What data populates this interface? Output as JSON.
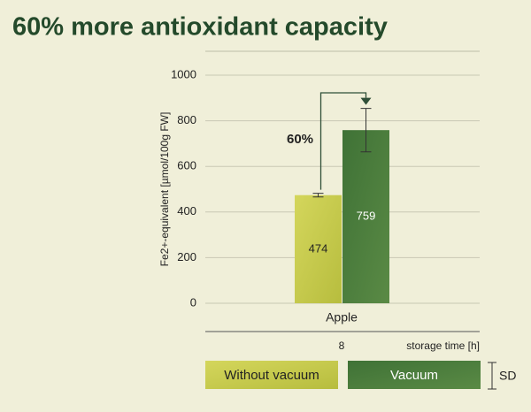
{
  "chart_data": {
    "type": "bar",
    "title": "60% more antioxidant capacity",
    "ylabel": "Fe2+-equivalent [µmol/100g FW]",
    "xlabel": "storage time [h]",
    "x_sublabel": "8",
    "categories": [
      "Apple"
    ],
    "series": [
      {
        "name": "Without vacuum",
        "color": "#c9cc4f",
        "values": [
          474
        ],
        "errors": [
          8
        ]
      },
      {
        "name": "Vacuum",
        "color": "#4b7a3c",
        "values": [
          759
        ],
        "errors": [
          95
        ]
      }
    ],
    "annotation": "60%",
    "error_label": "SD",
    "ylim": [
      0,
      1000
    ],
    "yticks": [
      0,
      200,
      400,
      600,
      800,
      1000
    ],
    "grid": true
  }
}
